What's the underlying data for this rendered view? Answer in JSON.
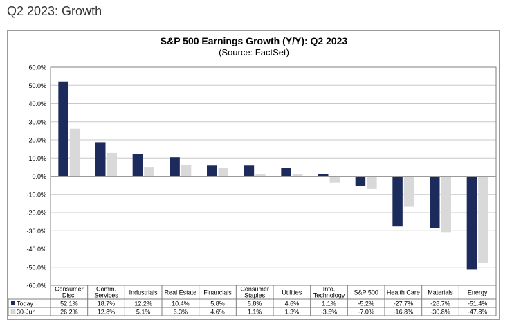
{
  "page": {
    "heading": "Q2 2023: Growth"
  },
  "colors": {
    "today": "#1c2a5c",
    "jun30": "#d9d9d9",
    "grid": "#c8c8c8",
    "axis": "#7f7f7f"
  },
  "chart_data": {
    "type": "bar",
    "title": "S&P 500 Earnings Growth (Y/Y): Q2 2023",
    "subtitle": "(Source: FactSet)",
    "categories": [
      [
        "Consumer",
        "Disc."
      ],
      [
        "Comm.",
        "Services"
      ],
      [
        "Industrials"
      ],
      [
        "Real Estate"
      ],
      [
        "Financials"
      ],
      [
        "Consumer",
        "Staples"
      ],
      [
        "Utilities"
      ],
      [
        "Info.",
        "Technology"
      ],
      [
        "S&P 500"
      ],
      [
        "Health Care"
      ],
      [
        "Materials"
      ],
      [
        "Energy"
      ]
    ],
    "series": [
      {
        "name": "Today",
        "values": [
          52.1,
          18.7,
          12.2,
          10.4,
          5.8,
          5.8,
          4.6,
          1.1,
          -5.2,
          -27.7,
          -28.7,
          -51.4
        ],
        "labels": [
          "52.1%",
          "18.7%",
          "12.2%",
          "10.4%",
          "5.8%",
          "5.8%",
          "4.6%",
          "1.1%",
          "-5.2%",
          "-27.7%",
          "-28.7%",
          "-51.4%"
        ]
      },
      {
        "name": "30-Jun",
        "values": [
          26.2,
          12.8,
          5.1,
          6.3,
          4.6,
          1.1,
          1.3,
          -3.5,
          -7.0,
          -16.8,
          -30.8,
          -47.8
        ],
        "labels": [
          "26.2%",
          "12.8%",
          "5.1%",
          "6.3%",
          "4.6%",
          "1.1%",
          "1.3%",
          "-3.5%",
          "-7.0%",
          "-16.8%",
          "-30.8%",
          "-47.8%"
        ]
      }
    ],
    "ylim": [
      -60,
      60
    ],
    "yticks": [
      60,
      50,
      40,
      30,
      20,
      10,
      0,
      -10,
      -20,
      -30,
      -40,
      -50,
      -60
    ],
    "ytick_labels": [
      "60.0%",
      "50.0%",
      "40.0%",
      "30.0%",
      "20.0%",
      "10.0%",
      "0.0%",
      "-10.0%",
      "-20.0%",
      "-30.0%",
      "-40.0%",
      "-50.0%",
      "-60.0%"
    ],
    "grid": true,
    "legend": "data table"
  }
}
